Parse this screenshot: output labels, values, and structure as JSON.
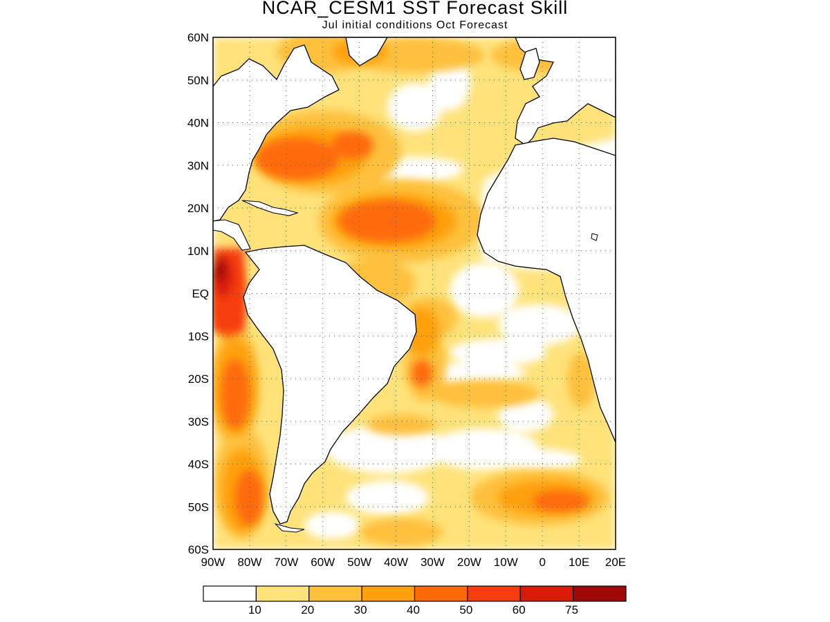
{
  "title": "NCAR_CESM1  SST Forecast Skill",
  "subtitle": "Jul initial conditions   Oct Forecast",
  "map": {
    "lat_labels": [
      "60N",
      "50N",
      "40N",
      "30N",
      "20N",
      "10N",
      "EQ",
      "10S",
      "20S",
      "30S",
      "40S",
      "50S",
      "60S"
    ],
    "lon_labels": [
      "90W",
      "80W",
      "70W",
      "60W",
      "50W",
      "40W",
      "30W",
      "20W",
      "10W",
      "0",
      "10E",
      "20E"
    ],
    "grid": "dotted",
    "land_fill": "#ffffff",
    "coastline_color": "#000000"
  },
  "colorbar": {
    "labels": [
      "10",
      "20",
      "30",
      "40",
      "50",
      "60",
      "75"
    ],
    "colors": [
      "#ffffff",
      "#ffe27a",
      "#ffc03c",
      "#ffa010",
      "#ff6a08",
      "#f63e0c",
      "#d81a08",
      "#a00808"
    ]
  }
}
